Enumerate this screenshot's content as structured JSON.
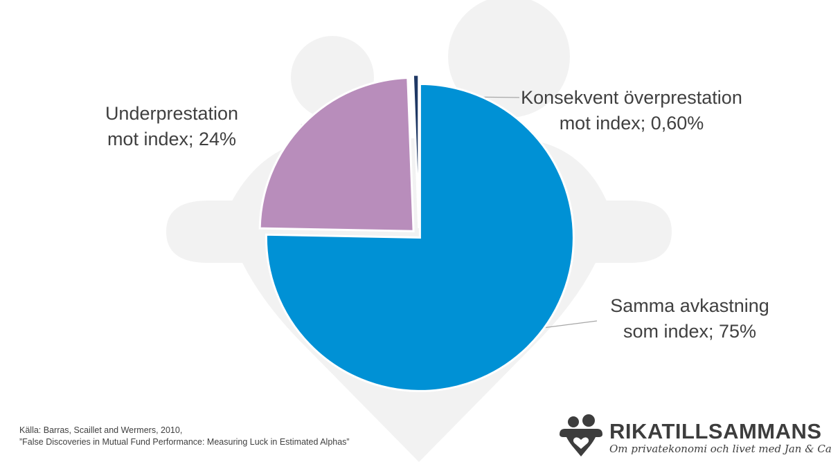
{
  "chart_data": {
    "type": "pie",
    "title": "",
    "slices": [
      {
        "label_lines": [
          "Samma avkastning",
          "som index; 75%"
        ],
        "value": 75,
        "color": "#0091d5"
      },
      {
        "label_lines": [
          "Underprestation",
          "mot index; 24%"
        ],
        "value": 24,
        "color": "#b88dbb"
      },
      {
        "label_lines": [
          "Konsekvent överprestation",
          "mot index; 0,60%"
        ],
        "value": 0.6,
        "color": "#1f3864"
      }
    ],
    "legend": "none"
  },
  "source": {
    "line1": "Källa:  Barras, Scaillet and Wermers, 2010,",
    "line2": "”False Discoveries in Mutual Fund Performance: Measuring Luck in Estimated Alphas”"
  },
  "brand": {
    "name": "RIKATILLSAMMANS",
    "tagline": "Om privatekonomi och livet med Jan & Caroline",
    "color": "#3d3d3d"
  },
  "background_color": "#f2f2f2"
}
